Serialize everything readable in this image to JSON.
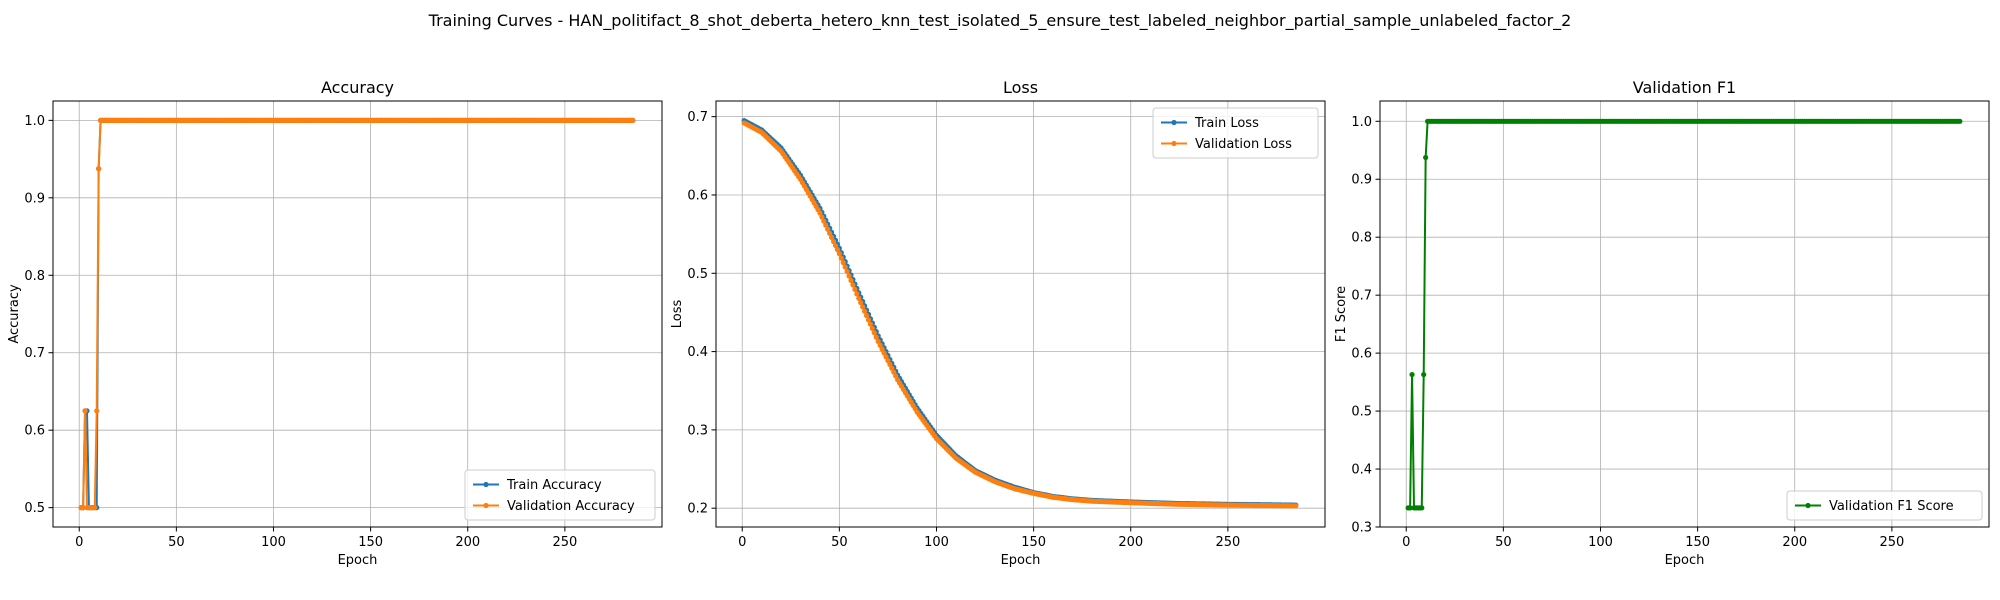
{
  "figure": {
    "suptitle": "Training Curves - HAN_politifact_8_shot_deberta_hetero_knn_test_isolated_5_ensure_test_labeled_neighbor_partial_sample_unlabeled_factor_2"
  },
  "colors": {
    "train": "#1f77b4",
    "validation": "#ff7f0e",
    "f1": "#008000",
    "grid": "#b0b0b0",
    "axis": "#000000"
  },
  "chart_data": [
    {
      "type": "line",
      "title": "Accuracy",
      "xlabel": "Epoch",
      "ylabel": "Accuracy",
      "xlim": [
        -13.5,
        300
      ],
      "ylim": [
        0.475,
        1.025
      ],
      "xticks": [
        0,
        50,
        100,
        150,
        200,
        250
      ],
      "yticks": [
        0.5,
        0.6,
        0.7,
        0.8,
        0.9,
        1.0
      ],
      "ytick_labels": [
        "0.5",
        "0.6",
        "0.7",
        "0.8",
        "0.9",
        "1.0"
      ],
      "grid": true,
      "legend_loc": "lower-right",
      "series": [
        {
          "name": "Train Accuracy",
          "color": "#1f77b4",
          "points": [
            [
              1,
              0.5
            ],
            [
              2,
              0.5
            ],
            [
              3,
              0.625
            ],
            [
              4,
              0.625
            ],
            [
              5,
              0.5
            ],
            [
              6,
              0.5
            ],
            [
              7,
              0.5
            ],
            [
              8,
              0.5
            ],
            [
              9,
              0.5
            ],
            [
              10,
              0.9375
            ],
            [
              11,
              1.0
            ],
            [
              285,
              1.0
            ]
          ]
        },
        {
          "name": "Validation Accuracy",
          "color": "#ff7f0e",
          "points": [
            [
              1,
              0.5
            ],
            [
              2,
              0.5
            ],
            [
              3,
              0.625
            ],
            [
              4,
              0.5
            ],
            [
              5,
              0.5
            ],
            [
              6,
              0.5
            ],
            [
              7,
              0.5
            ],
            [
              8,
              0.5
            ],
            [
              9,
              0.625
            ],
            [
              10,
              0.9375
            ],
            [
              11,
              1.0
            ],
            [
              285,
              1.0
            ]
          ]
        }
      ]
    },
    {
      "type": "line",
      "title": "Loss",
      "xlabel": "Epoch",
      "ylabel": "Loss",
      "xlim": [
        -13.5,
        300
      ],
      "ylim": [
        0.176,
        0.72
      ],
      "xticks": [
        0,
        50,
        100,
        150,
        200,
        250
      ],
      "yticks": [
        0.2,
        0.3,
        0.4,
        0.5,
        0.6,
        0.7
      ],
      "ytick_labels": [
        "0.2",
        "0.3",
        "0.4",
        "0.5",
        "0.6",
        "0.7"
      ],
      "grid": true,
      "legend_loc": "upper-right",
      "series": [
        {
          "name": "Train Loss",
          "color": "#1f77b4",
          "points": [
            [
              1,
              0.695
            ],
            [
              10,
              0.683
            ],
            [
              20,
              0.66
            ],
            [
              30,
              0.625
            ],
            [
              40,
              0.583
            ],
            [
              50,
              0.532
            ],
            [
              60,
              0.475
            ],
            [
              70,
              0.42
            ],
            [
              80,
              0.37
            ],
            [
              90,
              0.328
            ],
            [
              100,
              0.293
            ],
            [
              110,
              0.267
            ],
            [
              120,
              0.248
            ],
            [
              130,
              0.236
            ],
            [
              140,
              0.227
            ],
            [
              150,
              0.22
            ],
            [
              160,
              0.215
            ],
            [
              170,
              0.212
            ],
            [
              180,
              0.21
            ],
            [
              200,
              0.208
            ],
            [
              225,
              0.206
            ],
            [
              250,
              0.205
            ],
            [
              285,
              0.204
            ]
          ]
        },
        {
          "name": "Validation Loss",
          "color": "#ff7f0e",
          "points": [
            [
              1,
              0.692
            ],
            [
              10,
              0.68
            ],
            [
              20,
              0.656
            ],
            [
              30,
              0.62
            ],
            [
              40,
              0.577
            ],
            [
              50,
              0.525
            ],
            [
              60,
              0.468
            ],
            [
              70,
              0.413
            ],
            [
              80,
              0.364
            ],
            [
              90,
              0.323
            ],
            [
              100,
              0.289
            ],
            [
              110,
              0.264
            ],
            [
              120,
              0.246
            ],
            [
              130,
              0.234
            ],
            [
              140,
              0.225
            ],
            [
              150,
              0.219
            ],
            [
              160,
              0.214
            ],
            [
              170,
              0.211
            ],
            [
              180,
              0.209
            ],
            [
              200,
              0.207
            ],
            [
              225,
              0.205
            ],
            [
              250,
              0.204
            ],
            [
              285,
              0.203
            ]
          ]
        }
      ]
    },
    {
      "type": "line",
      "title": "Validation F1",
      "xlabel": "Epoch",
      "ylabel": "F1 Score",
      "xlim": [
        -13.5,
        300
      ],
      "ylim": [
        0.3,
        1.035
      ],
      "xticks": [
        0,
        50,
        100,
        150,
        200,
        250
      ],
      "yticks": [
        0.3,
        0.4,
        0.5,
        0.6,
        0.7,
        0.8,
        0.9,
        1.0
      ],
      "ytick_labels": [
        "0.3",
        "0.4",
        "0.5",
        "0.6",
        "0.7",
        "0.8",
        "0.9",
        "1.0"
      ],
      "grid": true,
      "legend_loc": "lower-right",
      "series": [
        {
          "name": "Validation F1 Score",
          "color": "#008000",
          "points": [
            [
              1,
              0.333
            ],
            [
              2,
              0.333
            ],
            [
              3,
              0.563
            ],
            [
              4,
              0.333
            ],
            [
              5,
              0.333
            ],
            [
              6,
              0.333
            ],
            [
              7,
              0.333
            ],
            [
              8,
              0.333
            ],
            [
              9,
              0.563
            ],
            [
              10,
              0.9375
            ],
            [
              11,
              1.0
            ],
            [
              285,
              1.0
            ]
          ]
        }
      ]
    }
  ]
}
